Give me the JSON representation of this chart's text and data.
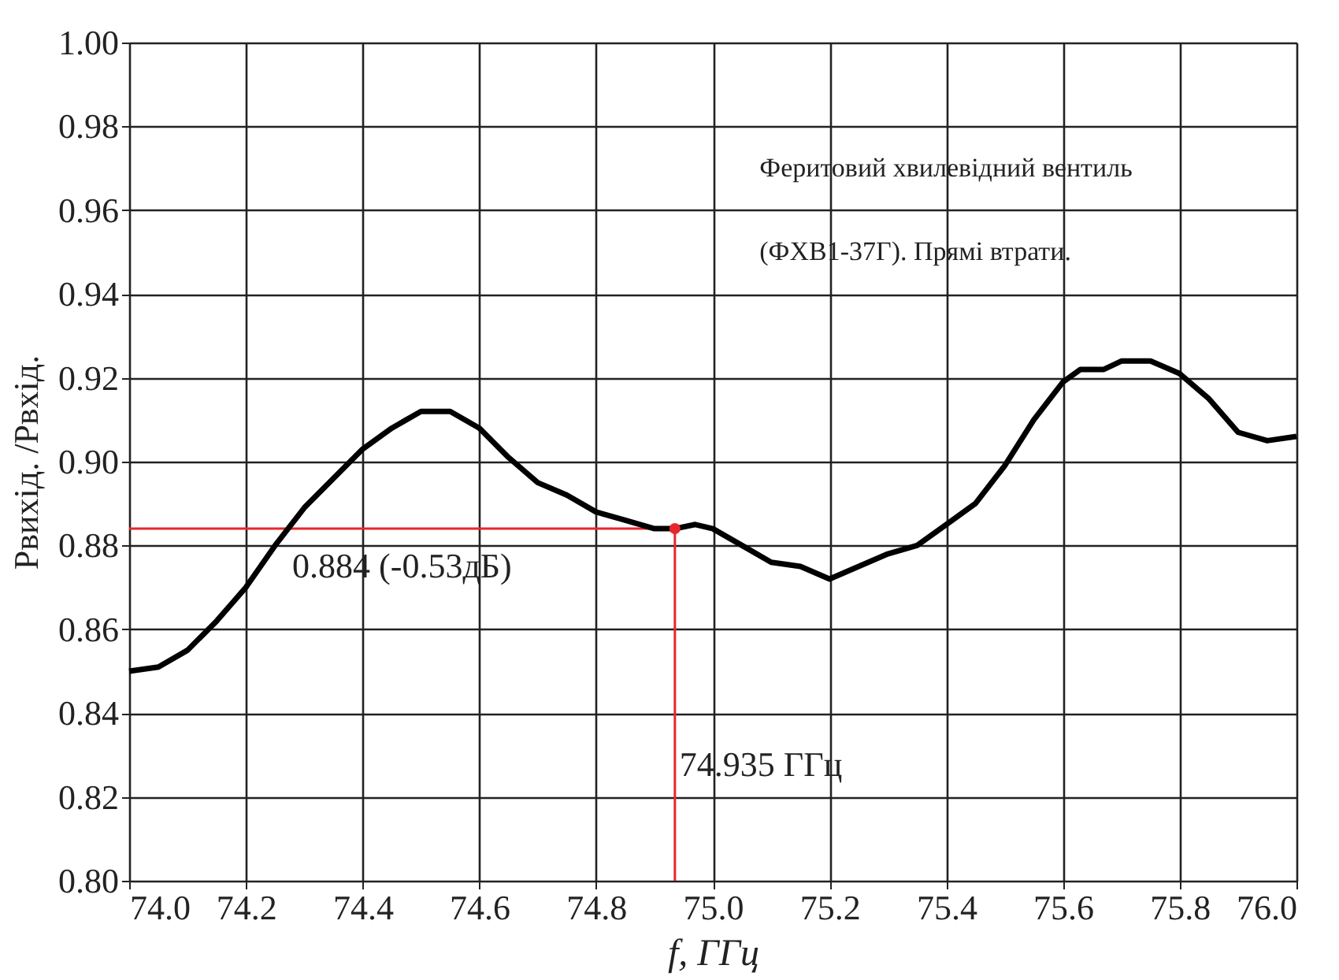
{
  "chart_data": {
    "type": "line",
    "xlabel": "f, ГГц",
    "ylabel": "Pвихід. /Pвхід.",
    "xlim": [
      74.0,
      76.0
    ],
    "xticks": [
      {
        "value": 74.0,
        "label": "74.0"
      },
      {
        "value": 74.2,
        "label": "74.2"
      },
      {
        "value": 74.4,
        "label": "74.4"
      },
      {
        "value": 74.6,
        "label": "74.6"
      },
      {
        "value": 74.8,
        "label": "74.8"
      },
      {
        "value": 75.0,
        "label": "75.0"
      },
      {
        "value": 75.2,
        "label": "75.2"
      },
      {
        "value": 75.4,
        "label": "75.4"
      },
      {
        "value": 75.6,
        "label": "75.6"
      },
      {
        "value": 75.8,
        "label": "75.8"
      },
      {
        "value": 76.0,
        "label": "76.0"
      }
    ],
    "ylim": [
      0.8,
      1.0
    ],
    "yticks": [
      {
        "value": 0.8,
        "label": "0.80"
      },
      {
        "value": 0.82,
        "label": "0.82"
      },
      {
        "value": 0.84,
        "label": "0.84"
      },
      {
        "value": 0.86,
        "label": "0.86"
      },
      {
        "value": 0.88,
        "label": "0.88"
      },
      {
        "value": 0.9,
        "label": "0.90"
      },
      {
        "value": 0.92,
        "label": "0.92"
      },
      {
        "value": 0.94,
        "label": "0.94"
      },
      {
        "value": 0.96,
        "label": "0.96"
      },
      {
        "value": 0.98,
        "label": "0.98"
      },
      {
        "value": 1.0,
        "label": "1.00"
      }
    ],
    "grid": true,
    "line_style": "solid",
    "marker": "none",
    "series": [
      {
        "color": "#000000",
        "x": [
          74.0,
          74.05,
          74.1,
          74.15,
          74.2,
          74.25,
          74.3,
          74.35,
          74.4,
          74.45,
          74.5,
          74.55,
          74.6,
          74.65,
          74.7,
          74.75,
          74.8,
          74.85,
          74.9,
          74.935,
          74.97,
          75.0,
          75.05,
          75.1,
          75.15,
          75.2,
          75.25,
          75.3,
          75.35,
          75.4,
          75.45,
          75.5,
          75.55,
          75.6,
          75.63,
          75.67,
          75.7,
          75.75,
          75.8,
          75.85,
          75.9,
          75.95,
          76.0
        ],
        "values": [
          0.85,
          0.851,
          0.855,
          0.862,
          0.87,
          0.88,
          0.889,
          0.896,
          0.903,
          0.908,
          0.912,
          0.912,
          0.908,
          0.901,
          0.895,
          0.892,
          0.888,
          0.886,
          0.884,
          0.884,
          0.885,
          0.884,
          0.88,
          0.876,
          0.875,
          0.872,
          0.875,
          0.878,
          0.88,
          0.885,
          0.89,
          0.899,
          0.91,
          0.919,
          0.922,
          0.922,
          0.924,
          0.924,
          0.921,
          0.915,
          0.907,
          0.905,
          0.906
        ]
      },
      {
        "type": "scatter",
        "color": "#e8262a",
        "marker": "circle",
        "x": [
          74.935
        ],
        "values": [
          0.884
        ]
      }
    ],
    "ref_lines": [
      {
        "axis": "y",
        "value": 0.884,
        "label": "0.884 (-0.53дБ)",
        "color": "#e8262a"
      },
      {
        "axis": "x",
        "value": 74.935,
        "label": "74.935 ГГц",
        "color": "#e8262a"
      }
    ],
    "annotations": [
      "Феритовий хвилевідний вентиль",
      "(ФХВ1-37Г). Прямі втрати."
    ]
  }
}
